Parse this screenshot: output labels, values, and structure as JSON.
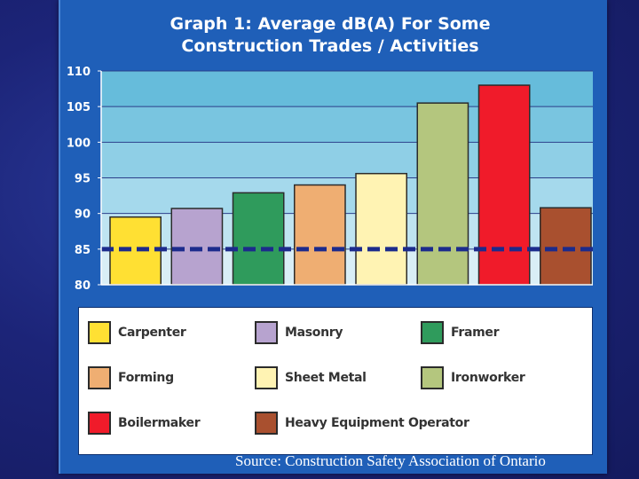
{
  "chart_data": {
    "type": "bar",
    "title_lines": [
      "Graph 1: Average dB(A) For Some",
      "Construction Trades / Activities"
    ],
    "categories": [
      "Carpenter",
      "Masonry",
      "Framer",
      "Forming",
      "Sheet Metal",
      "Ironworker",
      "Boilermaker",
      "Heavy Equipment Operator"
    ],
    "values": [
      89.5,
      90.7,
      92.9,
      94,
      95.6,
      105.5,
      108,
      90.8
    ],
    "colors": [
      "#ffe033",
      "#b7a3cf",
      "#2f9b5c",
      "#efae72",
      "#fff3b3",
      "#b4c67e",
      "#f01b2a",
      "#a9502f"
    ],
    "ylim": [
      80,
      110
    ],
    "yticks": [
      "80",
      "85",
      "90",
      "95",
      "100",
      "105",
      "110"
    ],
    "reference_line": 85,
    "reference_line_color": "#1c2b8c",
    "grid": true,
    "legend_position": "bottom"
  },
  "source_caption": "Source:  Construction Safety Association of Ontario"
}
